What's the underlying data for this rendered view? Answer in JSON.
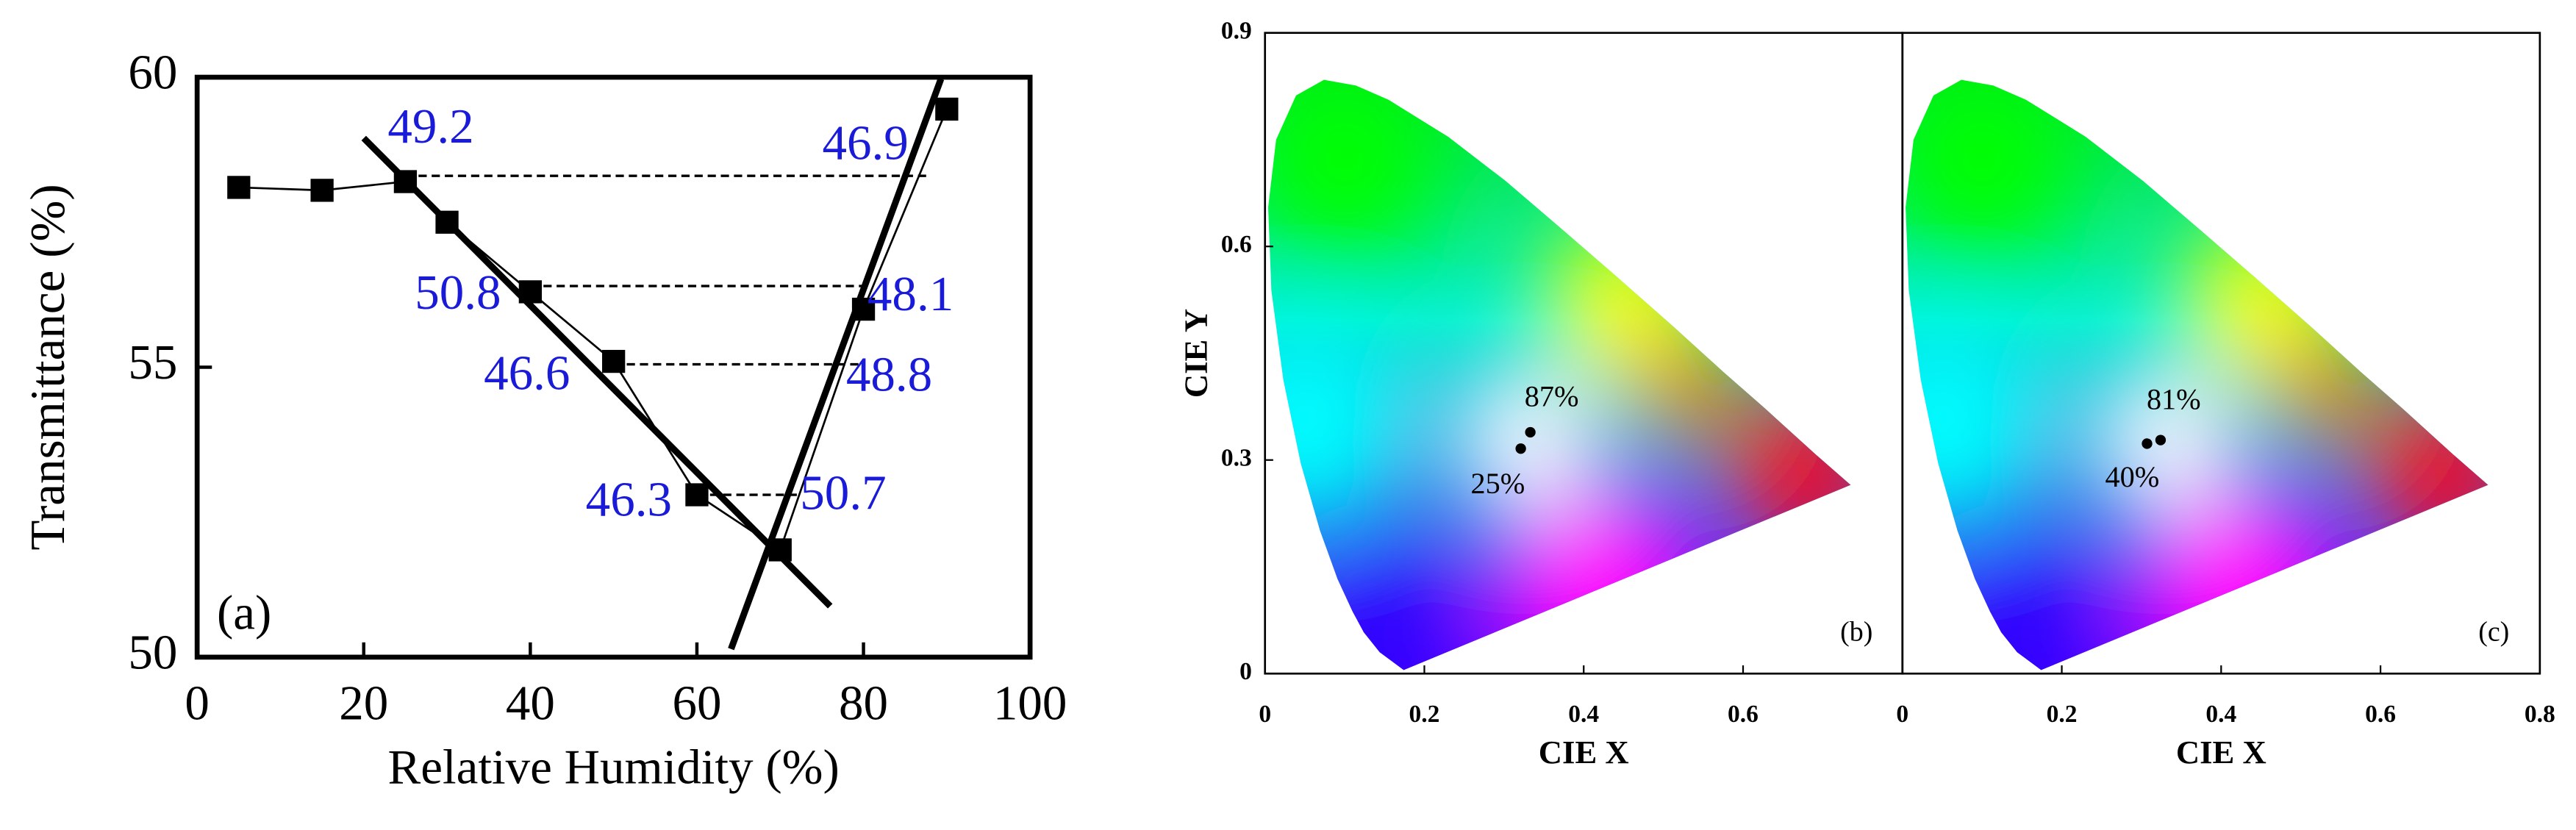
{
  "chart_data": [
    {
      "type": "line",
      "panel_label": "(a)",
      "xlabel": "Relative Humidity (%)",
      "ylabel": "Transmittance (%)",
      "x": [
        5,
        15,
        25,
        30,
        40,
        50,
        60,
        70,
        80,
        90
      ],
      "series": [
        {
          "color": "#000000",
          "values": [
            58.1,
            58.05,
            58.2,
            57.5,
            56.3,
            55.1,
            52.8,
            51.85,
            56.0,
            59.45
          ]
        }
      ],
      "fit_lines": [
        {
          "x": [
            20,
            76
          ],
          "y": [
            58.95,
            50.88
          ]
        },
        {
          "x": [
            64.1,
            89.3
          ],
          "y": [
            50.14,
            59.97
          ]
        }
      ],
      "ref_lines": [
        {
          "x": [
            25,
            88
          ],
          "y": 58.3
        },
        {
          "x": [
            40,
            80
          ],
          "y": 56.4
        },
        {
          "x": [
            50,
            80
          ],
          "y": 55.05
        },
        {
          "x": [
            60,
            72
          ],
          "y": 52.8
        }
      ],
      "annotations": [
        "49.2",
        "46.9",
        "50.8",
        "48.1",
        "46.6",
        "48.8",
        "46.3",
        "50.7"
      ],
      "annotation_color": "#1a1ad9",
      "xlim": [
        0,
        100
      ],
      "xticks": [
        0,
        20,
        40,
        60,
        80,
        100
      ],
      "ylim": [
        50,
        60
      ],
      "yticks": [
        50,
        55,
        60
      ]
    },
    {
      "type": "scatter",
      "panel_label": "(b)",
      "xlabel": "CIE X",
      "ylabel": "CIE Y",
      "x": [
        0.321,
        0.333
      ],
      "values": [
        0.316,
        0.339
      ],
      "point_labels": [
        "25%",
        "87%"
      ],
      "color": "#000000",
      "xlim": [
        0,
        0.8
      ],
      "xticks": [
        0,
        0.2,
        0.4,
        0.6
      ],
      "ylim": [
        0,
        0.9
      ],
      "yticks": [
        0,
        0.3,
        0.6,
        0.9
      ]
    },
    {
      "type": "scatter",
      "panel_label": "(c)",
      "xlabel": "CIE X",
      "x": [
        0.307,
        0.324
      ],
      "values": [
        0.323,
        0.328
      ],
      "point_labels": [
        "40%",
        "81%"
      ],
      "color": "#000000",
      "xlim": [
        0,
        0.8
      ],
      "xticks": [
        0,
        0.2,
        0.4,
        0.6,
        0.8
      ],
      "ylim": [
        0,
        0.9
      ]
    }
  ]
}
